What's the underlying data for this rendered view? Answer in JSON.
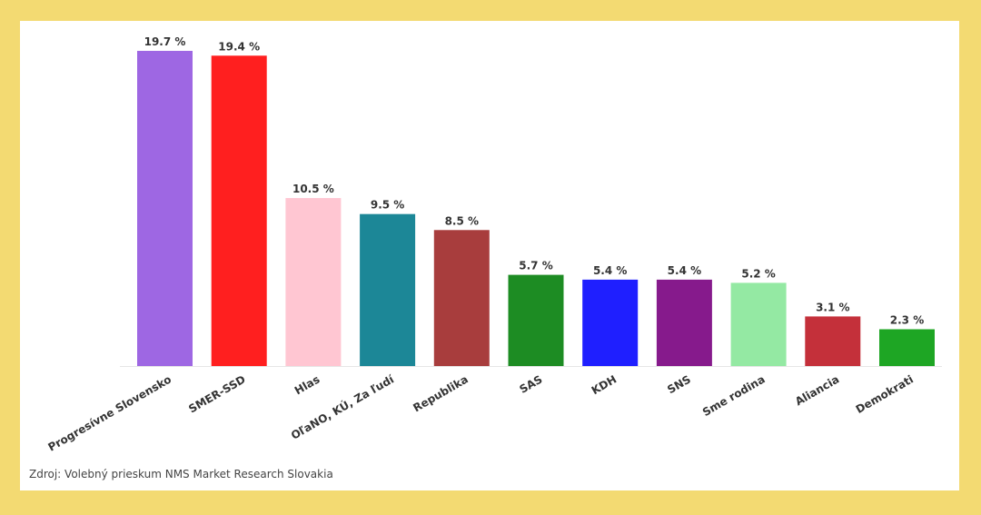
{
  "chart_data": {
    "type": "bar",
    "categories": [
      "Progresívne Slovensko",
      "SMER-SSD",
      "Hlas",
      "OľaNO, KÚ, Za ľudí",
      "Republika",
      "SAS",
      "KDH",
      "SNS",
      "Sme rodina",
      "Aliancia",
      "Demokrati"
    ],
    "values": [
      19.7,
      19.4,
      10.5,
      9.5,
      8.5,
      5.7,
      5.4,
      5.4,
      5.2,
      3.1,
      2.3
    ],
    "value_labels": [
      "19.7 %",
      "19.4 %",
      "10.5 %",
      "9.5 %",
      "8.5 %",
      "5.7 %",
      "5.4 %",
      "5.4 %",
      "5.2 %",
      "3.1 %",
      "2.3 %"
    ],
    "colors": [
      "#9e67e3",
      "#ff1f1f",
      "#ffc6d2",
      "#1c8797",
      "#a83d3d",
      "#1d8c23",
      "#1f1fff",
      "#861a8c",
      "#94e9a3",
      "#c4303a",
      "#1ea624"
    ],
    "ylim": [
      0,
      19.7
    ],
    "grid": false,
    "legend": "none"
  },
  "source": "Zdroj: Volebný prieskum NMS Market Research Slovakia"
}
